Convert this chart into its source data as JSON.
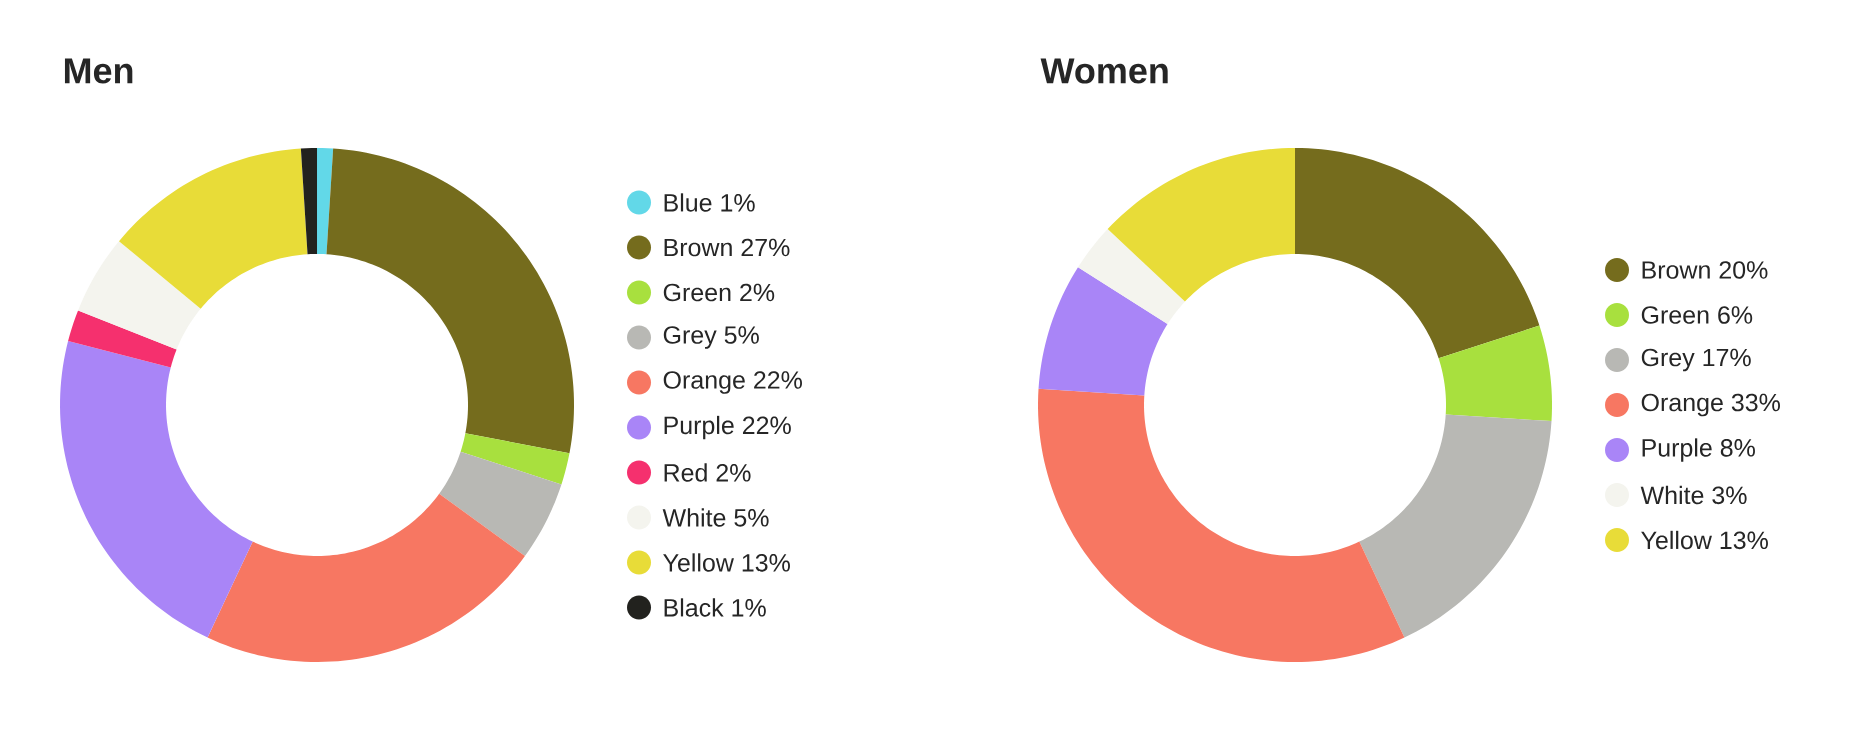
{
  "chart_data": [
    {
      "type": "donut",
      "title": "Men",
      "categories": [
        "Blue 1%",
        "Brown 27%",
        "Green 2%",
        "Grey 5%",
        "Orange 22%",
        "Purple 22%",
        "Red 2%",
        "White 5%",
        "Yellow 13%",
        "Black 1%"
      ],
      "values": [
        1,
        27,
        2,
        5,
        22,
        22,
        2,
        5,
        13,
        1
      ],
      "colors": [
        "#62d8e8",
        "#756c1d",
        "#a8e03e",
        "#b8b8b4",
        "#f77762",
        "#a985f7",
        "#f5306e",
        "#f4f4ee",
        "#e8dc38",
        "#22221e"
      ],
      "legend": "right"
    },
    {
      "type": "donut",
      "title": "Women",
      "categories": [
        "Brown 20%",
        "Green 6%",
        "Grey 17%",
        "Orange 33%",
        "Purple 8%",
        "White 3%",
        "Yellow 13%"
      ],
      "values": [
        20,
        6,
        17,
        33,
        8,
        3,
        13
      ],
      "colors": [
        "#756c1d",
        "#a8e03e",
        "#b8b8b4",
        "#f77762",
        "#a985f7",
        "#f4f4ee",
        "#e8dc38"
      ],
      "legend": "right"
    }
  ]
}
